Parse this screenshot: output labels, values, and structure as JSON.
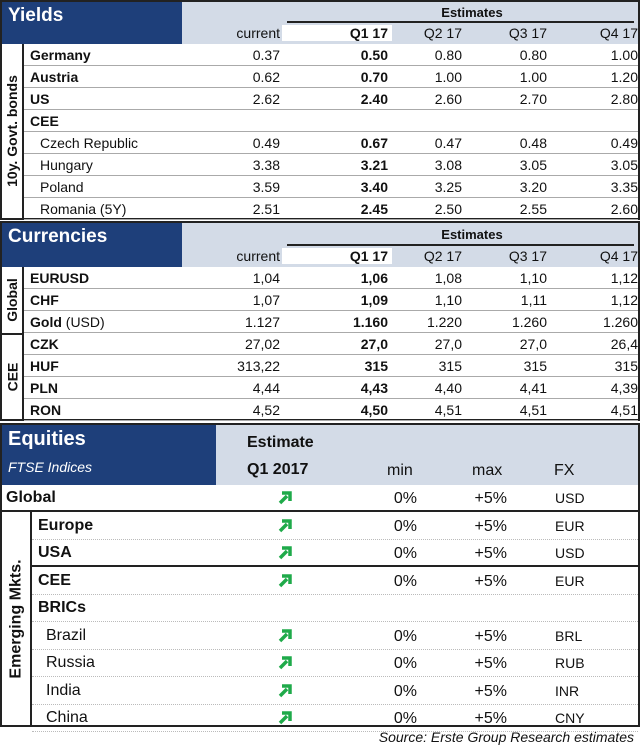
{
  "yields": {
    "title": "Yields",
    "estimates_label": "Estimates",
    "side_label": "10y. Govt. bonds",
    "columns": [
      "current",
      "Q1 17",
      "Q2 17",
      "Q3 17",
      "Q4 17"
    ],
    "rows": [
      {
        "name": "Germany",
        "bold": true,
        "values": [
          "0.37",
          "0.50",
          "0.80",
          "0.80",
          "1.00"
        ]
      },
      {
        "name": "Austria",
        "bold": true,
        "values": [
          "0.62",
          "0.70",
          "1.00",
          "1.00",
          "1.20"
        ]
      },
      {
        "name": "US",
        "bold": true,
        "values": [
          "2.62",
          "2.40",
          "2.60",
          "2.70",
          "2.80"
        ]
      },
      {
        "name": "CEE",
        "bold": true,
        "values": [
          "",
          "",
          "",
          "",
          ""
        ]
      },
      {
        "name": "Czech Republic",
        "indent": true,
        "values": [
          "0.49",
          "0.67",
          "0.47",
          "0.48",
          "0.49"
        ]
      },
      {
        "name": "Hungary",
        "indent": true,
        "values": [
          "3.38",
          "3.21",
          "3.08",
          "3.05",
          "3.05"
        ]
      },
      {
        "name": "Poland",
        "indent": true,
        "values": [
          "3.59",
          "3.40",
          "3.25",
          "3.20",
          "3.35"
        ]
      },
      {
        "name": "Romania (5Y)",
        "indent": true,
        "values": [
          "2.51",
          "2.45",
          "2.50",
          "2.55",
          "2.60"
        ]
      }
    ]
  },
  "currencies": {
    "title": "Currencies",
    "estimates_label": "Estimates",
    "side_global": "Global",
    "side_cee": "CEE",
    "columns": [
      "current",
      "Q1 17",
      "Q2 17",
      "Q3 17",
      "Q4 17"
    ],
    "rows": [
      {
        "name": "EURUSD",
        "values": [
          "1,04",
          "1,06",
          "1,08",
          "1,10",
          "1,12"
        ]
      },
      {
        "name": "CHF",
        "values": [
          "1,07",
          "1,09",
          "1,10",
          "1,11",
          "1,12"
        ]
      },
      {
        "name": "Gold",
        "suffix": " (USD)",
        "values": [
          "1.127",
          "1.160",
          "1.220",
          "1.260",
          "1.260"
        ]
      },
      {
        "name": "CZK",
        "values": [
          "27,02",
          "27,0",
          "27,0",
          "27,0",
          "26,4"
        ]
      },
      {
        "name": "HUF",
        "values": [
          "313,22",
          "315",
          "315",
          "315",
          "315"
        ]
      },
      {
        "name": "PLN",
        "values": [
          "4,44",
          "4,43",
          "4,40",
          "4,41",
          "4,39"
        ]
      },
      {
        "name": "RON",
        "values": [
          "4,52",
          "4,50",
          "4,51",
          "4,51",
          "4,51"
        ]
      }
    ]
  },
  "equities": {
    "title": "Equities",
    "subtitle": "FTSE Indices",
    "estimate_label": "Estimate",
    "period": "Q1 2017",
    "min_label": "min",
    "max_label": "max",
    "fx_label": "FX",
    "side_label": "Emerging Mkts.",
    "arrow_color": "#1faa4a",
    "rows": [
      {
        "name": "Global",
        "bold": true,
        "arrow": "up-right",
        "min": "0%",
        "max": "+5%",
        "fx": "USD"
      },
      {
        "name": "Europe",
        "bold": true,
        "arrow": "up-right",
        "min": "0%",
        "max": "+5%",
        "fx": "EUR"
      },
      {
        "name": "USA",
        "bold": true,
        "arrow": "up-right",
        "min": "0%",
        "max": "+5%",
        "fx": "USD"
      },
      {
        "name": "CEE",
        "bold": true,
        "arrow": "up-right",
        "min": "0%",
        "max": "+5%",
        "fx": "EUR"
      },
      {
        "name": "BRICs",
        "bold": true,
        "min": "",
        "max": "",
        "fx": ""
      },
      {
        "name": "Brazil",
        "arrow": "up-right",
        "min": "0%",
        "max": "+5%",
        "fx": "BRL"
      },
      {
        "name": "Russia",
        "arrow": "up-right",
        "min": "0%",
        "max": "+5%",
        "fx": "RUB"
      },
      {
        "name": "India",
        "arrow": "up-right",
        "min": "0%",
        "max": "+5%",
        "fx": "INR"
      },
      {
        "name": "China",
        "arrow": "up-right",
        "min": "0%",
        "max": "+5%",
        "fx": "CNY"
      }
    ]
  },
  "source": "Source: Erste Group Research estimates",
  "colors": {
    "header_dark": "#1e3f7a",
    "header_light": "#d3dbe7"
  }
}
